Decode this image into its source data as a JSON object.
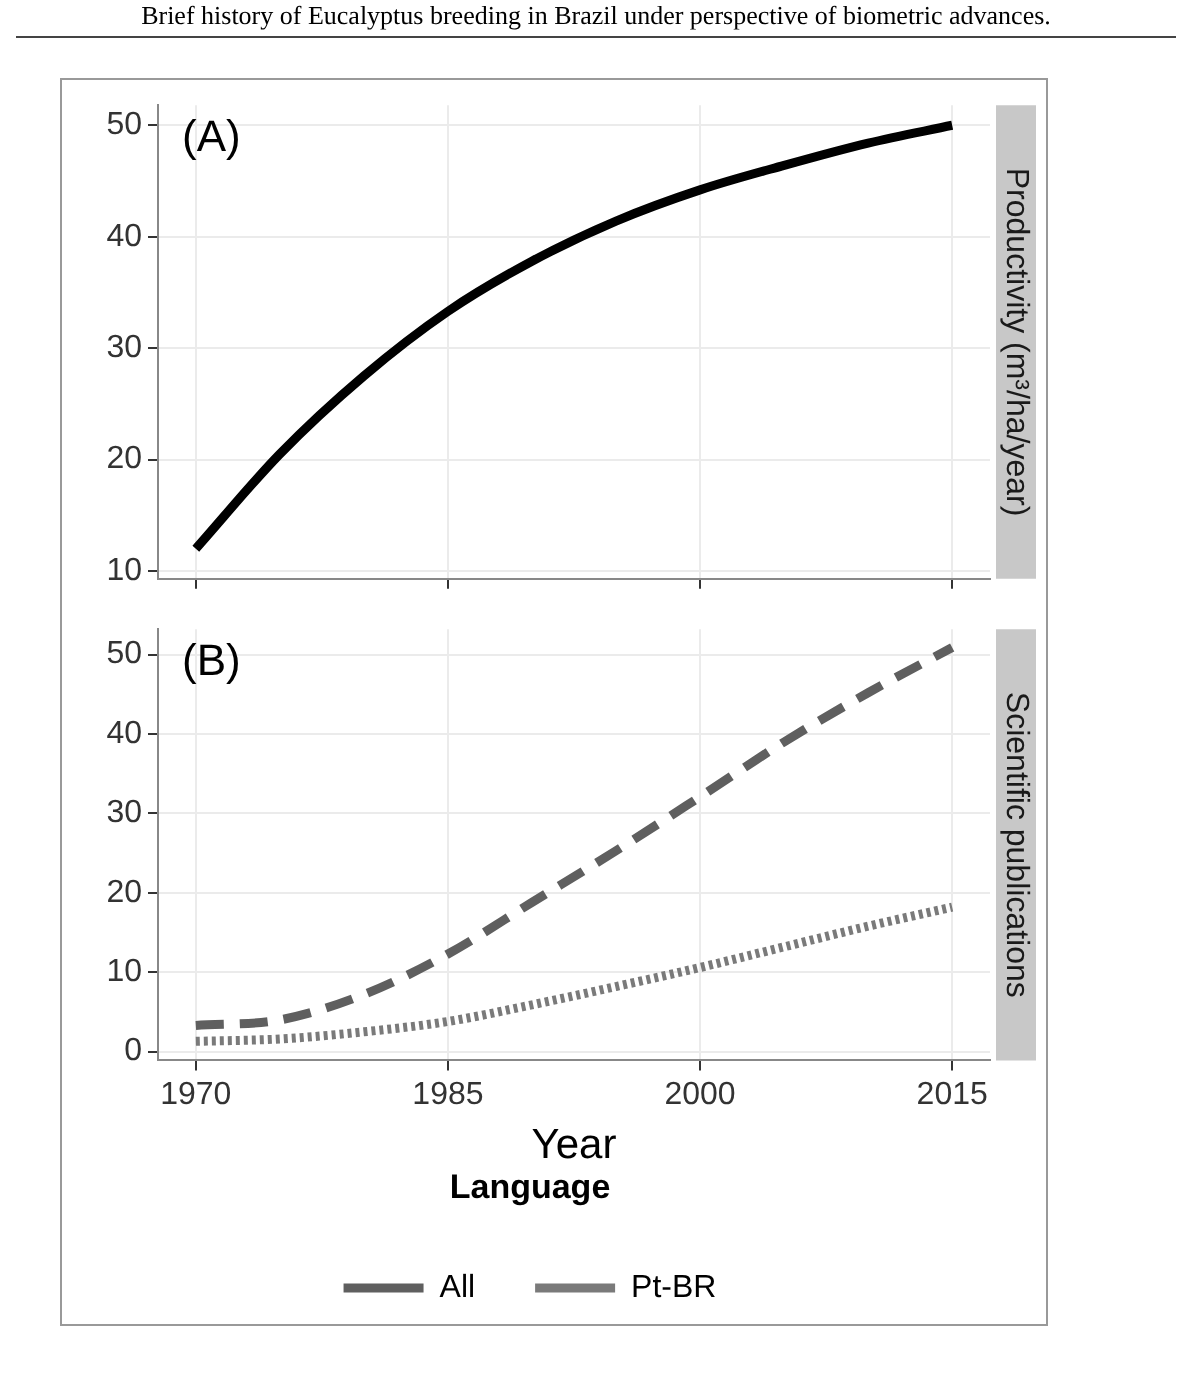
{
  "chart_data": [
    {
      "type": "line",
      "title": "(A)",
      "ylabel": "Productivity (m³/ha/year)",
      "annotations": [
        "Brief history of Eucalyptus breeding in Brazil under perspective of biometric advances."
      ],
      "xlim": [
        1967.75,
        2017.25
      ],
      "xticks": [
        1970,
        1985,
        2000,
        2015
      ],
      "ylim": [
        9.3,
        51.8
      ],
      "yticks": [
        10,
        20,
        30,
        40,
        50
      ],
      "grid": true,
      "tick_labels": "y",
      "series": [
        {
          "color": "#000000",
          "line_style": "solid",
          "x": [
            1970,
            1975,
            1980,
            1985,
            1990,
            1995,
            2000,
            2005,
            2010,
            2015
          ],
          "values": [
            12,
            20.5,
            27.5,
            33.3,
            37.8,
            41.4,
            44.2,
            46.4,
            48.4,
            50
          ]
        }
      ]
    },
    {
      "type": "line",
      "title": "(B)",
      "ylabel": "Scientific publications",
      "xlabel": "Year",
      "legend_title": "Language",
      "legend": "bottom",
      "xlim": [
        1967.75,
        2017.25
      ],
      "xticks": [
        1970,
        1985,
        2000,
        2015
      ],
      "ylim": [
        -1.1,
        53.2
      ],
      "yticks": [
        0,
        10,
        20,
        30,
        40,
        50
      ],
      "grid": true,
      "series": [
        {
          "name": "All",
          "color": "#5f5f5f",
          "line_style": "dashed",
          "x": [
            1970,
            1975,
            1980,
            1985,
            1990,
            1995,
            2000,
            2005,
            2010,
            2015
          ],
          "values": [
            3.3,
            4.0,
            7.2,
            12.3,
            18.8,
            25.3,
            32.1,
            39,
            45.2,
            50.9
          ]
        },
        {
          "name": "Pt-BR",
          "color": "#7a7a7a",
          "line_style": "dotted",
          "x": [
            1970,
            1975,
            1980,
            1985,
            1990,
            1995,
            2000,
            2005,
            2010,
            2015
          ],
          "values": [
            1.3,
            1.6,
            2.5,
            3.8,
            5.9,
            8.2,
            10.6,
            13.2,
            15.8,
            18.2
          ]
        }
      ]
    }
  ]
}
